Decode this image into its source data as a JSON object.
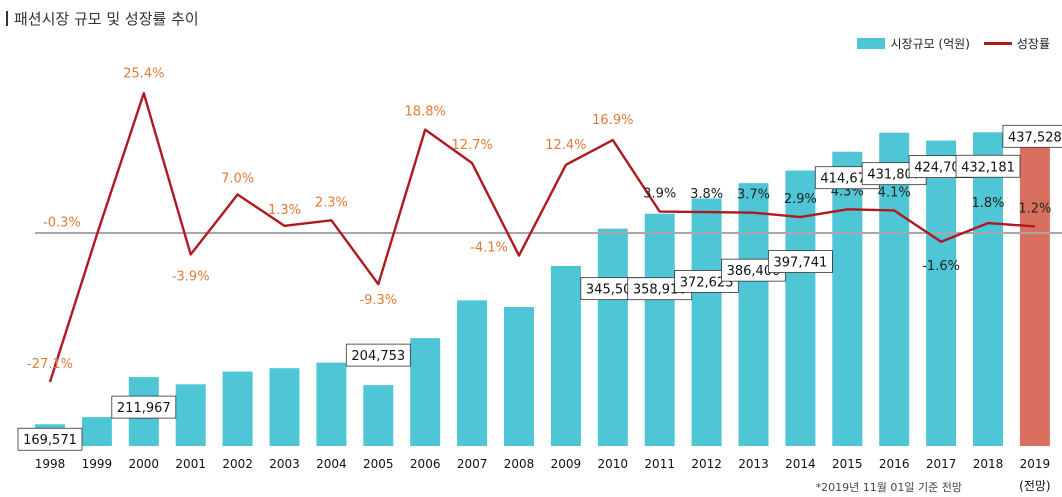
{
  "title": "패션시장 규모 및 성장률 추이",
  "legend": {
    "bar_label": "시장규모 (억원)",
    "line_label": "성장률"
  },
  "footnote": "*2019년 11월 01일 기준 전망",
  "colors": {
    "bar": "#4fc6d6",
    "bar_forecast": "#d9705f",
    "line": "#b0191f",
    "growth_label": "#e07b39",
    "zero_line": "#a8a8a8"
  },
  "chart_data": {
    "type": "bar+line",
    "categories": [
      "1998",
      "1999",
      "2000",
      "2001",
      "2002",
      "2003",
      "2004",
      "2005",
      "2006",
      "2007",
      "2008",
      "2009",
      "2010",
      "2011",
      "2012",
      "2013",
      "2014",
      "2015",
      "2016",
      "2017",
      "2018",
      "2019"
    ],
    "forecast_sublabel": "(전망)",
    "forecast_index": 21,
    "series": [
      {
        "name": "시장규모 (억원)",
        "type": "bar",
        "values": [
          169571,
          176000,
          211967,
          205500,
          217000,
          220000,
          225000,
          204753,
          247000,
          281000,
          275000,
          312000,
          345501,
          358916,
          372623,
          386400,
          397741,
          414676,
          431807,
          424704,
          432181,
          437528
        ],
        "data_labels": [
          "169,571",
          "",
          "211,967",
          "",
          "",
          "",
          "",
          "204,753",
          "",
          "",
          "",
          "",
          "345,501",
          "358,916",
          "372,623",
          "386,400",
          "397,741",
          "414,676",
          "431,807",
          "424,704",
          "432,181",
          "437,528"
        ]
      },
      {
        "name": "성장률",
        "type": "line",
        "values": [
          -27.1,
          -0.3,
          25.4,
          -3.9,
          7.0,
          1.3,
          2.3,
          -9.3,
          18.8,
          12.7,
          -4.1,
          12.4,
          16.9,
          3.9,
          3.8,
          3.7,
          2.9,
          4.3,
          4.1,
          -1.6,
          1.8,
          1.2
        ],
        "data_labels": [
          "-27.1%",
          "-0.3%",
          "25.4%",
          "-3.9%",
          "7.0%",
          "1.3%",
          "2.3%",
          "-9.3%",
          "18.8%",
          "12.7%",
          "-4.1%",
          "12.4%",
          "16.9%",
          "3.9%",
          "3.8%",
          "3.7%",
          "2.9%",
          "4.3%",
          "4.1%",
          "-1.6%",
          "1.8%",
          "1.2%"
        ]
      }
    ],
    "bar_ylim": [
      150000,
      445000
    ],
    "line_ylim": [
      -30,
      28
    ],
    "grid": false,
    "legend_position": "top-right"
  }
}
